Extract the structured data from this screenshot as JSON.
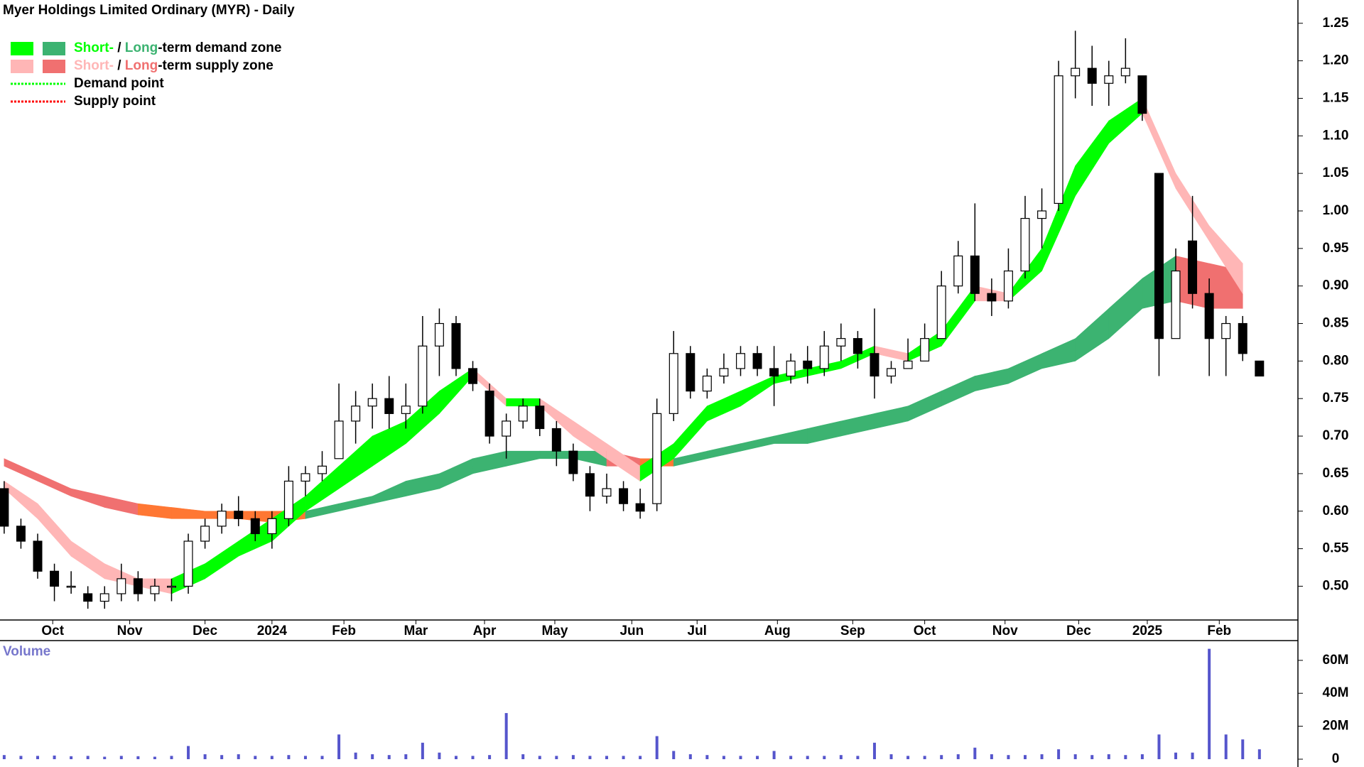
{
  "chart_data": [
    {
      "type": "candlestick",
      "title": "Myer Holdings Limited Ordinary (MYR) - Daily",
      "legend": [
        {
          "short": "Short-",
          "sep": " / ",
          "long": "Long",
          "rest": "-term demand zone",
          "short_color": "#00ff00",
          "long_color": "#3cb371"
        },
        {
          "short": "Short-",
          "sep": " / ",
          "long": "Long",
          "rest": "-term supply zone",
          "short_color": "#ffb6b6",
          "long_color": "#f07070"
        },
        {
          "label": "Demand point",
          "color": "#00ff00"
        },
        {
          "label": "Supply point",
          "color": "#ff0000"
        }
      ],
      "x": [
        0,
        1,
        2,
        3,
        4,
        5,
        6,
        7,
        8,
        9,
        10,
        11,
        12,
        13,
        14,
        15,
        16,
        17,
        18,
        19,
        20,
        21,
        22,
        23,
        24,
        25,
        26,
        27,
        28,
        29,
        30,
        31,
        32,
        33,
        34,
        35,
        36,
        37,
        38,
        39,
        40,
        41,
        42,
        43,
        44,
        45,
        46,
        47,
        48,
        49,
        50,
        51,
        52,
        53,
        54,
        55,
        56,
        57,
        58,
        59,
        60,
        61,
        62,
        63,
        64,
        65,
        66,
        67,
        68,
        69,
        70,
        71,
        72,
        73,
        74,
        75
      ],
      "open": [
        0.63,
        0.58,
        0.56,
        0.52,
        0.5,
        0.49,
        0.48,
        0.49,
        0.51,
        0.49,
        0.5,
        0.5,
        0.56,
        0.58,
        0.6,
        0.59,
        0.57,
        0.59,
        0.64,
        0.65,
        0.67,
        0.72,
        0.74,
        0.75,
        0.73,
        0.74,
        0.82,
        0.85,
        0.79,
        0.76,
        0.7,
        0.72,
        0.74,
        0.71,
        0.68,
        0.65,
        0.62,
        0.63,
        0.61,
        0.61,
        0.73,
        0.81,
        0.76,
        0.78,
        0.79,
        0.81,
        0.79,
        0.78,
        0.8,
        0.79,
        0.82,
        0.83,
        0.81,
        0.78,
        0.79,
        0.8,
        0.83,
        0.9,
        0.94,
        0.89,
        0.88,
        0.92,
        0.99,
        1.01,
        1.18,
        1.19,
        1.17,
        1.18,
        1.18,
        1.05,
        0.83,
        0.96,
        0.89,
        0.83,
        0.85,
        0.8
      ],
      "high": [
        0.64,
        0.59,
        0.57,
        0.53,
        0.52,
        0.5,
        0.5,
        0.53,
        0.52,
        0.51,
        0.51,
        0.57,
        0.59,
        0.61,
        0.62,
        0.6,
        0.6,
        0.66,
        0.66,
        0.68,
        0.77,
        0.76,
        0.77,
        0.78,
        0.77,
        0.86,
        0.87,
        0.86,
        0.8,
        0.77,
        0.73,
        0.75,
        0.75,
        0.72,
        0.69,
        0.66,
        0.65,
        0.64,
        0.63,
        0.75,
        0.84,
        0.82,
        0.79,
        0.81,
        0.82,
        0.82,
        0.82,
        0.81,
        0.82,
        0.84,
        0.85,
        0.84,
        0.87,
        0.8,
        0.83,
        0.85,
        0.92,
        0.96,
        1.01,
        0.91,
        0.95,
        1.02,
        1.03,
        1.2,
        1.24,
        1.22,
        1.2,
        1.23,
        1.18,
        1.05,
        0.95,
        1.02,
        0.91,
        0.86,
        0.86,
        0.8
      ],
      "low": [
        0.57,
        0.55,
        0.51,
        0.48,
        0.49,
        0.47,
        0.47,
        0.48,
        0.48,
        0.48,
        0.48,
        0.49,
        0.55,
        0.57,
        0.58,
        0.56,
        0.55,
        0.58,
        0.62,
        0.64,
        0.67,
        0.69,
        0.71,
        0.71,
        0.71,
        0.73,
        0.78,
        0.78,
        0.76,
        0.69,
        0.67,
        0.71,
        0.7,
        0.66,
        0.64,
        0.6,
        0.61,
        0.6,
        0.59,
        0.6,
        0.72,
        0.75,
        0.75,
        0.77,
        0.78,
        0.78,
        0.74,
        0.77,
        0.77,
        0.78,
        0.8,
        0.79,
        0.75,
        0.77,
        0.79,
        0.8,
        0.83,
        0.89,
        0.88,
        0.86,
        0.87,
        0.91,
        0.95,
        1.0,
        1.15,
        1.14,
        1.14,
        1.17,
        1.12,
        0.78,
        0.83,
        0.87,
        0.78,
        0.78,
        0.8,
        0.78
      ],
      "close": [
        0.58,
        0.56,
        0.52,
        0.5,
        0.5,
        0.48,
        0.49,
        0.51,
        0.49,
        0.5,
        0.5,
        0.56,
        0.58,
        0.6,
        0.59,
        0.57,
        0.59,
        0.64,
        0.65,
        0.66,
        0.72,
        0.74,
        0.75,
        0.73,
        0.74,
        0.82,
        0.85,
        0.79,
        0.77,
        0.7,
        0.72,
        0.74,
        0.71,
        0.68,
        0.65,
        0.62,
        0.63,
        0.61,
        0.6,
        0.73,
        0.81,
        0.76,
        0.78,
        0.79,
        0.81,
        0.79,
        0.78,
        0.8,
        0.79,
        0.82,
        0.83,
        0.81,
        0.78,
        0.79,
        0.8,
        0.83,
        0.9,
        0.94,
        0.89,
        0.88,
        0.92,
        0.99,
        1.0,
        1.18,
        1.19,
        1.17,
        1.18,
        1.19,
        1.13,
        0.83,
        0.92,
        0.89,
        0.83,
        0.85,
        0.81,
        0.78
      ],
      "band_x": [
        0,
        2,
        4,
        6,
        8,
        10,
        12,
        14,
        16,
        18,
        20,
        22,
        24,
        26,
        28,
        30,
        32,
        34,
        36,
        38,
        40,
        42,
        44,
        46,
        48,
        50,
        52,
        54,
        56,
        58,
        60,
        62,
        64,
        66,
        68,
        70,
        72,
        74
      ],
      "short_upper": [
        0.64,
        0.61,
        0.56,
        0.53,
        0.51,
        0.51,
        0.53,
        0.56,
        0.59,
        0.62,
        0.66,
        0.7,
        0.72,
        0.76,
        0.79,
        0.75,
        0.75,
        0.72,
        0.69,
        0.66,
        0.69,
        0.74,
        0.76,
        0.78,
        0.79,
        0.8,
        0.82,
        0.81,
        0.84,
        0.9,
        0.89,
        0.95,
        1.06,
        1.12,
        1.15,
        1.05,
        0.98,
        0.93
      ],
      "short_lower": [
        0.63,
        0.59,
        0.54,
        0.51,
        0.5,
        0.49,
        0.51,
        0.54,
        0.56,
        0.6,
        0.63,
        0.66,
        0.69,
        0.73,
        0.78,
        0.74,
        0.74,
        0.7,
        0.67,
        0.64,
        0.67,
        0.72,
        0.74,
        0.77,
        0.78,
        0.79,
        0.81,
        0.8,
        0.82,
        0.88,
        0.88,
        0.92,
        1.02,
        1.09,
        1.13,
        1.03,
        0.96,
        0.89
      ],
      "long_upper": [
        0.67,
        0.65,
        0.63,
        0.62,
        0.61,
        0.605,
        0.6,
        0.6,
        0.6,
        0.6,
        0.61,
        0.62,
        0.64,
        0.65,
        0.67,
        0.68,
        0.68,
        0.68,
        0.68,
        0.67,
        0.67,
        0.68,
        0.69,
        0.7,
        0.71,
        0.72,
        0.73,
        0.74,
        0.76,
        0.78,
        0.79,
        0.81,
        0.83,
        0.87,
        0.91,
        0.94,
        0.93,
        0.92
      ],
      "long_lower": [
        0.66,
        0.64,
        0.62,
        0.605,
        0.595,
        0.59,
        0.59,
        0.59,
        0.585,
        0.59,
        0.6,
        0.61,
        0.62,
        0.63,
        0.65,
        0.66,
        0.67,
        0.67,
        0.66,
        0.66,
        0.66,
        0.67,
        0.68,
        0.69,
        0.69,
        0.7,
        0.71,
        0.72,
        0.74,
        0.76,
        0.77,
        0.79,
        0.8,
        0.83,
        0.87,
        0.88,
        0.87,
        0.87
      ],
      "orange_color": "#ff7733",
      "xlim": [
        -0.25,
        77.3
      ],
      "xticks": [
        {
          "value": 2.9,
          "label": "Oct"
        },
        {
          "value": 7.5,
          "label": "Nov"
        },
        {
          "value": 12.0,
          "label": "Dec"
        },
        {
          "value": 16.0,
          "label": "2024"
        },
        {
          "value": 20.3,
          "label": "Feb"
        },
        {
          "value": 24.6,
          "label": "Mar"
        },
        {
          "value": 28.7,
          "label": "Apr"
        },
        {
          "value": 32.9,
          "label": "May"
        },
        {
          "value": 37.5,
          "label": "Jun"
        },
        {
          "value": 41.4,
          "label": "Jul"
        },
        {
          "value": 46.2,
          "label": "Aug"
        },
        {
          "value": 50.7,
          "label": "Sep"
        },
        {
          "value": 55.0,
          "label": "Oct"
        },
        {
          "value": 59.8,
          "label": "Nov"
        },
        {
          "value": 64.2,
          "label": "Dec"
        },
        {
          "value": 68.3,
          "label": "2025"
        },
        {
          "value": 72.6,
          "label": "Feb"
        }
      ],
      "ylim": [
        0.455,
        1.281
      ],
      "yticks": [
        {
          "value": 0.5,
          "label": "0.50"
        },
        0.55,
        {
          "value": 0.6,
          "label": "0.60"
        },
        0.65,
        {
          "value": 0.7,
          "label": "0.70"
        },
        0.75,
        {
          "value": 0.8,
          "label": "0.80"
        },
        0.85,
        {
          "value": 0.9,
          "label": "0.90"
        },
        0.95,
        {
          "value": 1.0,
          "label": "1.00"
        },
        1.05,
        {
          "value": 1.1,
          "label": "1.10"
        },
        1.15,
        {
          "value": 1.2,
          "label": "1.20"
        },
        1.25
      ]
    },
    {
      "type": "bar",
      "title": "Volume",
      "color": "#5555cc",
      "values": [
        2500000,
        2000000,
        2000000,
        2200000,
        1800000,
        2000000,
        1500000,
        2000000,
        1800000,
        1500000,
        2000000,
        8000000,
        3000000,
        2500000,
        3000000,
        2000000,
        2000000,
        2500000,
        2000000,
        2000000,
        15000000,
        4000000,
        3000000,
        2500000,
        3000000,
        10000000,
        4000000,
        2000000,
        2000000,
        2500000,
        28000000,
        3000000,
        2000000,
        2000000,
        2500000,
        2000000,
        2000000,
        2000000,
        2000000,
        14000000,
        5000000,
        3000000,
        2500000,
        2000000,
        2000000,
        2000000,
        5000000,
        2000000,
        2000000,
        2000000,
        2500000,
        2000000,
        10000000,
        3000000,
        2000000,
        2000000,
        2500000,
        3000000,
        7000000,
        3000000,
        2500000,
        2500000,
        3000000,
        6000000,
        3000000,
        2500000,
        3000000,
        2500000,
        3000000,
        15000000,
        4000000,
        4000000,
        67000000,
        15000000,
        12000000,
        6000000
      ],
      "ylim": [
        0,
        72000000
      ],
      "yticks": [
        0,
        {
          "value": 20000000,
          "label": "20M"
        },
        {
          "value": 40000000,
          "label": "40M"
        },
        {
          "value": 60000000,
          "label": "60M"
        }
      ]
    }
  ]
}
